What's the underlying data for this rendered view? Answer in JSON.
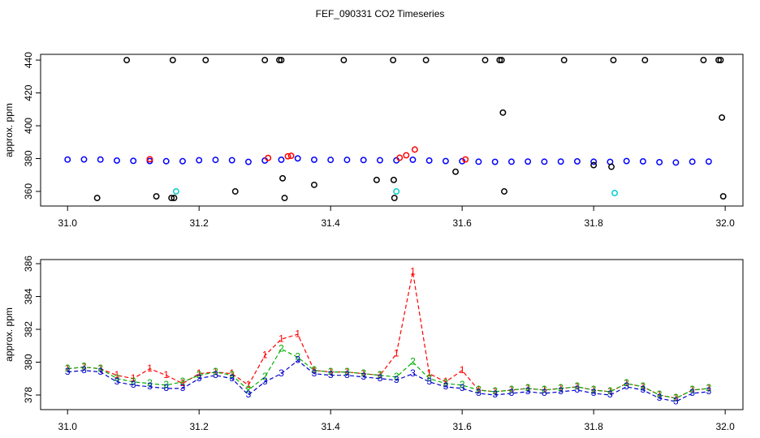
{
  "chart_data": [
    {
      "type": "scatter",
      "title": "FEF_090331  CO2 Timeseries",
      "ylabel": "approx. ppm",
      "xlim": [
        30.959,
        32.027
      ],
      "ylim": [
        351.1,
        443.5
      ],
      "xticks": [
        {
          "value": 31.0,
          "label": "31.0"
        },
        31.2,
        31.4,
        31.6,
        31.8,
        {
          "value": 32.0,
          "label": "32.0"
        }
      ],
      "yticks": [
        360,
        380,
        400,
        420,
        440
      ],
      "series": [
        {
          "color": "#0000ff",
          "x": [
            31.0,
            31.025,
            31.05,
            31.075,
            31.1,
            31.125,
            31.15,
            31.175,
            31.2,
            31.225,
            31.25,
            31.275,
            31.3,
            31.325,
            31.35,
            31.375,
            31.4,
            31.425,
            31.45,
            31.475,
            31.5,
            31.525,
            31.55,
            31.575,
            31.6,
            31.625,
            31.65,
            31.675,
            31.7,
            31.725,
            31.75,
            31.775,
            31.8,
            31.825,
            31.85,
            31.875,
            31.9,
            31.925,
            31.95,
            31.975
          ],
          "values": [
            379.4,
            379.5,
            379.4,
            378.8,
            378.6,
            378.5,
            378.4,
            378.4,
            379.0,
            379.2,
            379.0,
            378.0,
            378.8,
            379.3,
            380.1,
            379.3,
            379.2,
            379.2,
            379.1,
            379.0,
            378.9,
            379.3,
            378.8,
            378.5,
            378.4,
            378.1,
            378.0,
            378.1,
            378.2,
            378.1,
            378.2,
            378.3,
            378.1,
            378.0,
            378.5,
            378.3,
            377.8,
            377.6,
            378.1,
            378.2
          ]
        },
        {
          "color": "#ff0000",
          "x": [
            31.125,
            31.305,
            31.335,
            31.34,
            31.505,
            31.515,
            31.528,
            31.605
          ],
          "values": [
            379.6,
            380.4,
            381.4,
            381.7,
            380.5,
            382.0,
            385.5,
            379.5
          ]
        },
        {
          "color": "#00cccc",
          "x": [
            31.165,
            31.5,
            31.832
          ],
          "values": [
            360,
            360,
            359
          ]
        },
        {
          "color": "#000000",
          "x": [
            31.09,
            31.16,
            31.21,
            31.3,
            31.322,
            31.325,
            31.42,
            31.495,
            31.545,
            31.635,
            31.657,
            31.66,
            31.755,
            31.83,
            31.878,
            31.967,
            31.99,
            31.993,
            31.045,
            31.135,
            31.158,
            31.162,
            31.255,
            31.327,
            31.33,
            31.375,
            31.47,
            31.496,
            31.497,
            31.59,
            31.662,
            31.664,
            31.8,
            31.827,
            31.995,
            31.997
          ],
          "values": [
            440,
            440,
            440,
            440,
            440,
            440,
            440,
            440,
            440,
            440,
            440,
            440,
            440,
            440,
            440,
            440,
            440,
            440,
            356,
            357,
            356,
            356,
            360,
            368,
            356,
            364,
            367,
            367,
            356,
            372,
            408,
            360,
            376,
            375,
            405,
            357
          ]
        }
      ]
    },
    {
      "type": "line",
      "ylabel": "approx. ppm",
      "xlim": [
        30.959,
        32.027
      ],
      "ylim": [
        377.11,
        386.25
      ],
      "xticks": [
        {
          "value": 31.0,
          "label": "31.0"
        },
        31.2,
        31.4,
        31.6,
        31.8,
        {
          "value": 32.0,
          "label": "32.0"
        }
      ],
      "yticks": [
        378,
        380,
        382,
        384,
        386
      ],
      "x": [
        31.0,
        31.025,
        31.05,
        31.075,
        31.1,
        31.125,
        31.15,
        31.175,
        31.2,
        31.225,
        31.25,
        31.275,
        31.3,
        31.325,
        31.35,
        31.375,
        31.4,
        31.425,
        31.45,
        31.475,
        31.5,
        31.525,
        31.55,
        31.575,
        31.6,
        31.625,
        31.65,
        31.675,
        31.7,
        31.725,
        31.75,
        31.775,
        31.8,
        31.825,
        31.85,
        31.875,
        31.9,
        31.925,
        31.95,
        31.975
      ],
      "series": [
        {
          "color": "#ff0000",
          "marker": "1",
          "values": [
            379.6,
            379.7,
            379.6,
            379.2,
            379.0,
            379.6,
            379.2,
            378.7,
            379.3,
            379.4,
            379.3,
            378.6,
            380.4,
            381.4,
            381.7,
            379.5,
            379.4,
            379.4,
            379.3,
            379.2,
            380.5,
            385.5,
            379.3,
            378.8,
            379.5,
            378.3,
            378.2,
            378.3,
            378.4,
            378.3,
            378.4,
            378.5,
            378.3,
            378.2,
            378.7,
            378.5,
            378.0,
            377.8,
            378.3,
            378.4
          ]
        },
        {
          "color": "#00b000",
          "marker": "2",
          "values": [
            379.6,
            379.7,
            379.6,
            379.0,
            378.8,
            378.7,
            378.6,
            378.8,
            379.2,
            379.4,
            379.2,
            378.3,
            379.1,
            380.8,
            380.3,
            379.5,
            379.4,
            379.4,
            379.3,
            379.2,
            379.1,
            380.0,
            379.0,
            378.7,
            378.6,
            378.3,
            378.2,
            378.3,
            378.4,
            378.3,
            378.4,
            378.5,
            378.3,
            378.2,
            378.7,
            378.5,
            378.0,
            377.8,
            378.3,
            378.4
          ]
        },
        {
          "color": "#0000cc",
          "marker": "3",
          "values": [
            379.4,
            379.5,
            379.4,
            378.8,
            378.6,
            378.5,
            378.4,
            378.4,
            379.0,
            379.2,
            379.0,
            378.0,
            378.8,
            379.3,
            380.1,
            379.3,
            379.2,
            379.2,
            379.1,
            379.0,
            378.9,
            379.3,
            378.8,
            378.5,
            378.4,
            378.1,
            378.0,
            378.1,
            378.2,
            378.1,
            378.2,
            378.3,
            378.1,
            378.0,
            378.5,
            378.3,
            377.8,
            377.6,
            378.1,
            378.2
          ]
        }
      ]
    }
  ]
}
